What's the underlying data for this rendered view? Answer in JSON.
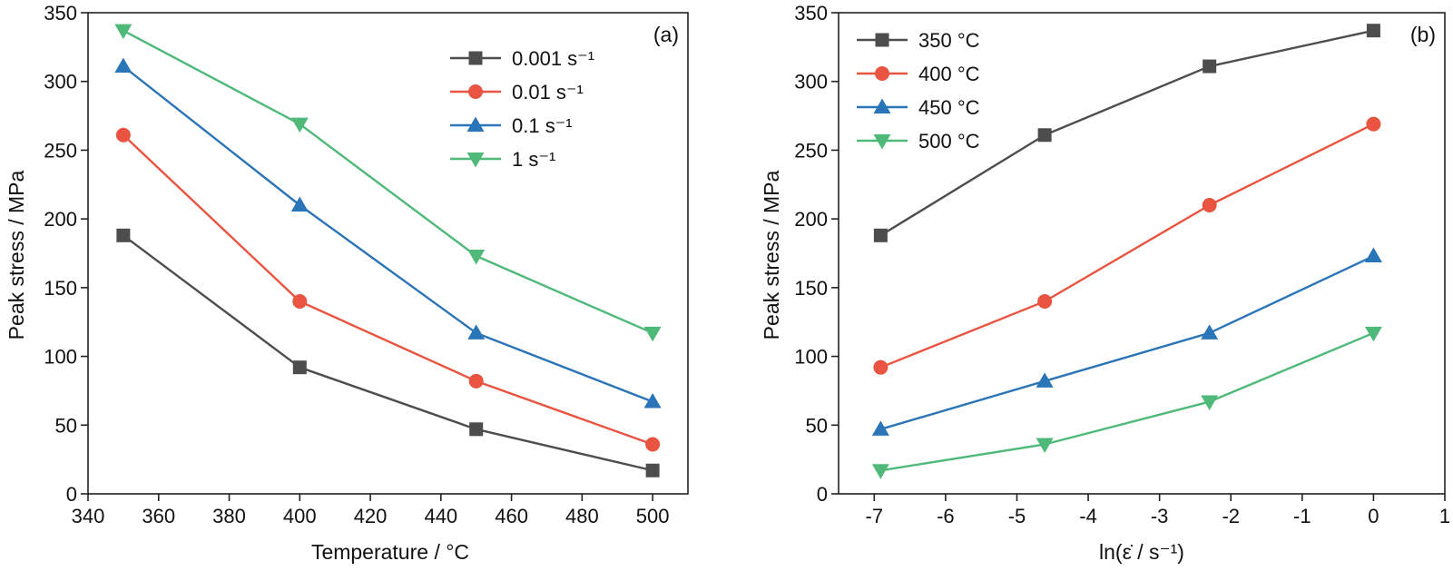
{
  "colors": {
    "gray": "#4d4d4d",
    "red": "#e8543f",
    "blue": "#2a74b8",
    "green": "#4fb97a"
  },
  "chart_data": [
    {
      "type": "line",
      "panel_label": "(a)",
      "xlabel": "Temperature / °C",
      "ylabel": "Peak stress / MPa",
      "xlim": [
        340,
        510
      ],
      "ylim": [
        0,
        350
      ],
      "xticks": [
        340,
        360,
        380,
        400,
        420,
        440,
        460,
        480,
        500
      ],
      "yticks": [
        0,
        50,
        100,
        150,
        200,
        250,
        300,
        350
      ],
      "x": [
        350,
        400,
        450,
        500
      ],
      "legend_position": "top-right",
      "series": [
        {
          "name": "0.001 s⁻¹",
          "marker": "square",
          "color": "#4d4d4d",
          "values": [
            188,
            92,
            47,
            17
          ]
        },
        {
          "name": "0.01 s⁻¹",
          "marker": "circle",
          "color": "#e8543f",
          "values": [
            261,
            140,
            82,
            36
          ]
        },
        {
          "name": "0.1 s⁻¹",
          "marker": "triangle-up",
          "color": "#2a74b8",
          "values": [
            311,
            210,
            117,
            67
          ]
        },
        {
          "name": "1 s⁻¹",
          "marker": "triangle-down",
          "color": "#4fb97a",
          "values": [
            337,
            269,
            173,
            117
          ]
        }
      ]
    },
    {
      "type": "line",
      "panel_label": "(b)",
      "xlabel": "ln(ε̇ / s⁻¹)",
      "ylabel": "Peak stress / MPa",
      "xlim": [
        -7.5,
        1
      ],
      "ylim": [
        0,
        350
      ],
      "xticks": [
        -7,
        -6,
        -5,
        -4,
        -3,
        -2,
        -1,
        0,
        1
      ],
      "yticks": [
        0,
        50,
        100,
        150,
        200,
        250,
        300,
        350
      ],
      "x": [
        -6.91,
        -4.61,
        -2.3,
        0
      ],
      "legend_position": "top-left",
      "series": [
        {
          "name": "350 °C",
          "marker": "square",
          "color": "#4d4d4d",
          "values": [
            188,
            261,
            311,
            337
          ]
        },
        {
          "name": "400 °C",
          "marker": "circle",
          "color": "#e8543f",
          "values": [
            92,
            140,
            210,
            269
          ]
        },
        {
          "name": "450 °C",
          "marker": "triangle-up",
          "color": "#2a74b8",
          "values": [
            47,
            82,
            117,
            173
          ]
        },
        {
          "name": "500 °C",
          "marker": "triangle-down",
          "color": "#4fb97a",
          "values": [
            17,
            36,
            67,
            117
          ]
        }
      ]
    }
  ]
}
